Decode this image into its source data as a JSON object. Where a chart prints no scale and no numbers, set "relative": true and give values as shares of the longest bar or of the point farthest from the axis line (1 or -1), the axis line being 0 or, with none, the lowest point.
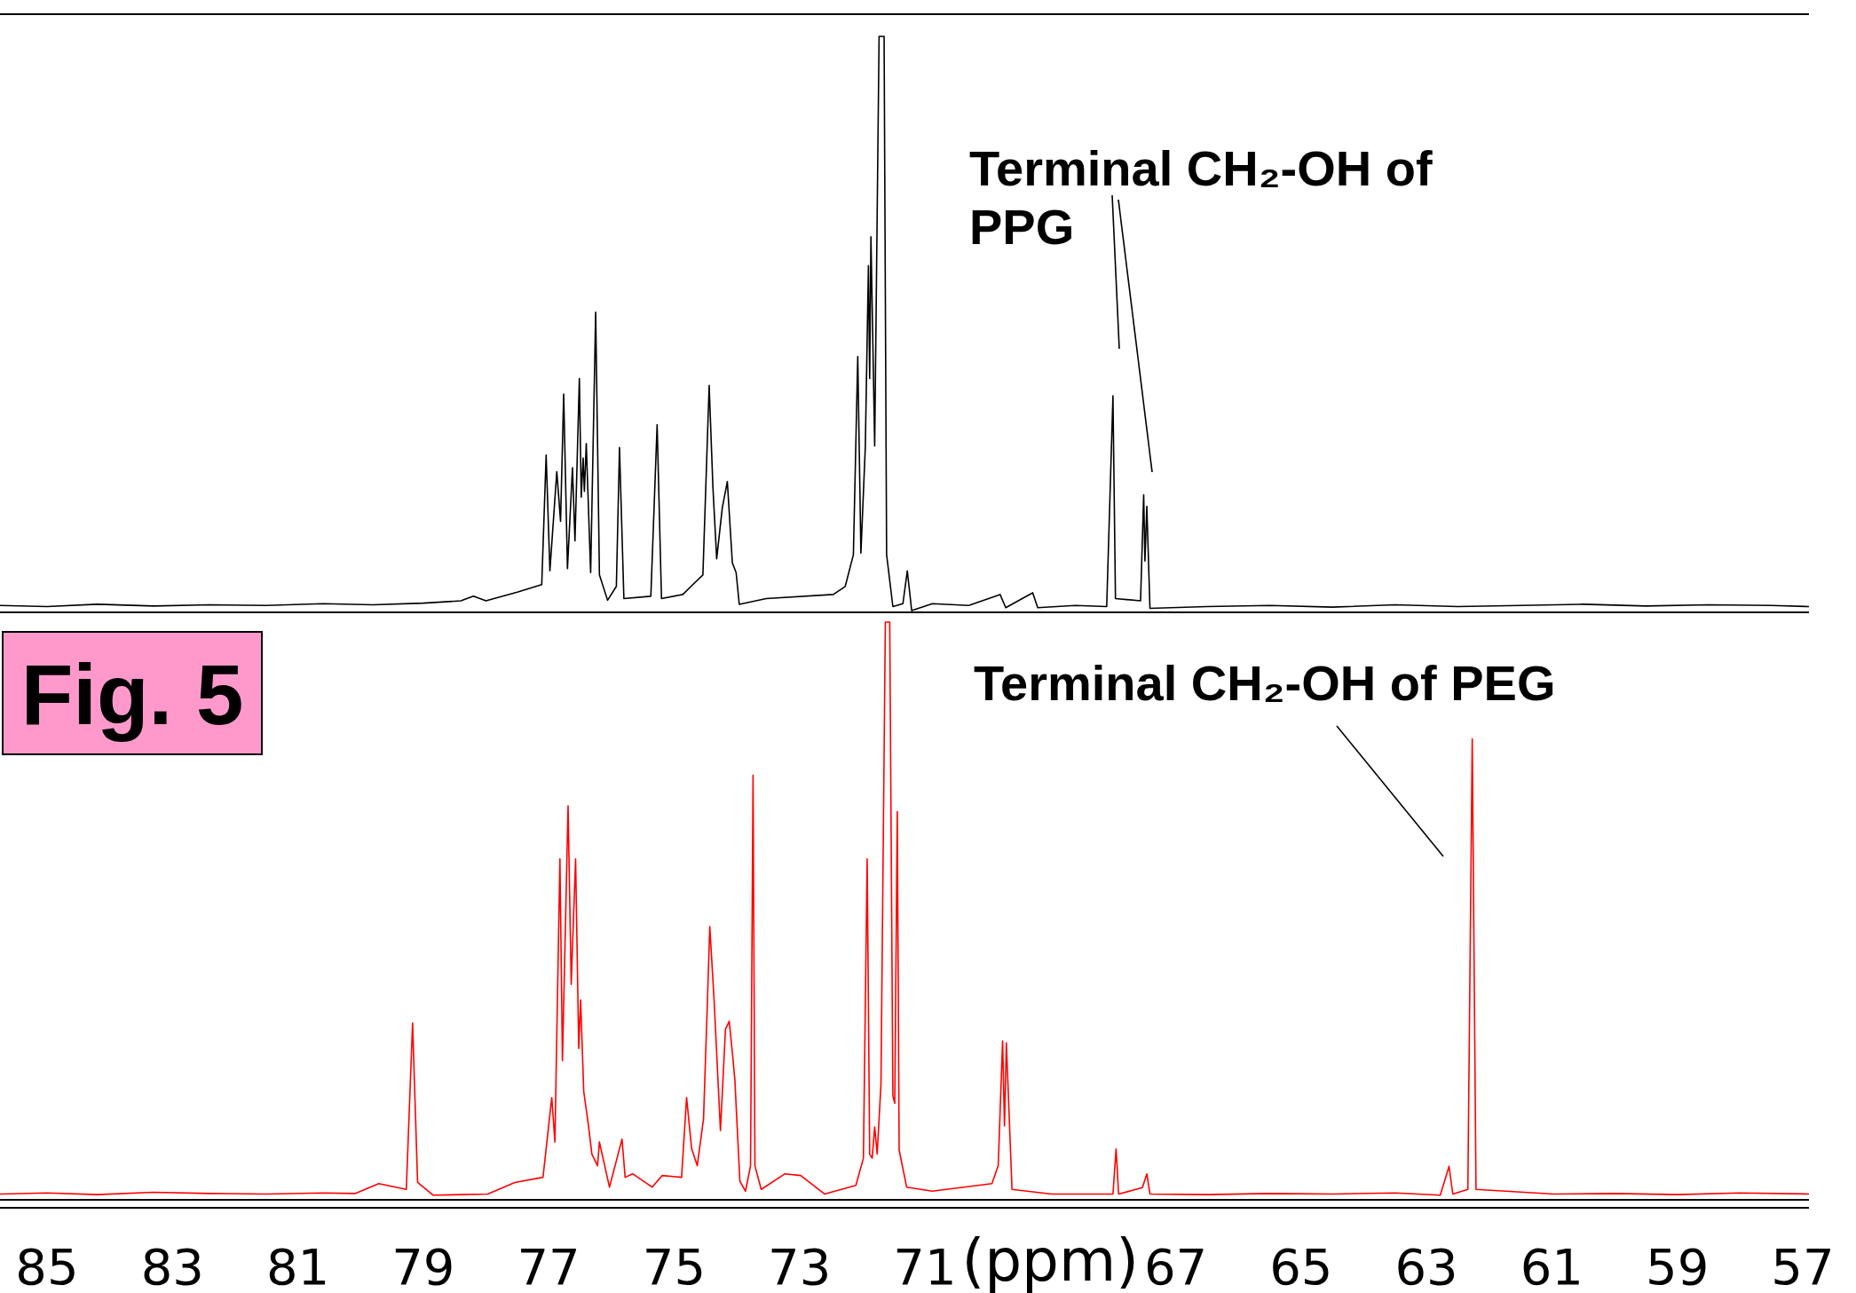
{
  "chart_data": [
    {
      "type": "line",
      "relative": true,
      "xlim": [
        85.75,
        56.9
      ],
      "xticks": [
        85,
        83,
        81,
        79,
        77,
        75,
        73,
        71,
        67,
        65,
        63,
        61,
        59,
        57
      ],
      "tick_labels": false,
      "annotations": [
        "Terminal CH₂-OH of PPG"
      ],
      "series": [
        {
          "color": "#000000",
          "x": [
            85.75,
            85,
            84.2,
            83.3,
            82.4,
            81.5,
            80.6,
            79.8,
            79,
            78.4,
            78.2,
            78.0,
            77.5,
            77.11,
            77.04,
            76.98,
            76.87,
            76.81,
            76.76,
            76.7,
            76.62,
            76.58,
            76.51,
            76.48,
            76.45,
            76.43,
            76.4,
            76.33,
            76.25,
            76.19,
            76.06,
            75.92,
            75.87,
            75.8,
            75.37,
            75.27,
            75.2,
            74.86,
            74.73,
            74.54,
            74.44,
            74.38,
            74.32,
            74.23,
            74.15,
            74.07,
            74.01,
            73.96,
            73.53,
            72.46,
            72.27,
            72.14,
            72.07,
            72.02,
            71.95,
            71.9,
            71.88,
            71.86,
            71.8,
            71.73,
            71.65,
            71.61,
            71.51,
            71.35,
            71.28,
            71.21,
            70.88,
            70.3,
            69.8,
            69.71,
            69.28,
            69.2,
            68.6,
            68.1,
            68.0,
            67.96,
            67.56,
            67.51,
            67.49,
            67.46,
            67.41,
            66.5,
            65.5,
            64.5,
            63.5,
            62.5,
            61.5,
            60.5,
            59.5,
            58.5,
            57.5,
            56.9
          ],
          "values": [
            0.012,
            0.01,
            0.014,
            0.011,
            0.013,
            0.012,
            0.015,
            0.013,
            0.016,
            0.02,
            0.028,
            0.02,
            0.035,
            0.048,
            0.273,
            0.072,
            0.244,
            0.158,
            0.379,
            0.076,
            0.251,
            0.124,
            0.406,
            0.2,
            0.268,
            0.21,
            0.293,
            0.069,
            0.521,
            0.065,
            0.021,
            0.045,
            0.286,
            0.024,
            0.028,
            0.326,
            0.024,
            0.031,
            0.045,
            0.065,
            0.394,
            0.217,
            0.093,
            0.182,
            0.227,
            0.086,
            0.069,
            0.014,
            0.024,
            0.031,
            0.045,
            0.1,
            0.444,
            0.103,
            0.286,
            0.602,
            0.406,
            0.652,
            0.289,
            1,
            1,
            0.1,
            0.01,
            0.015,
            0.072,
            0.003,
            0.015,
            0.012,
            0.031,
            0.008,
            0.034,
            0.008,
            0.012,
            0.01,
            0.376,
            0.024,
            0.02,
            0.204,
            0.089,
            0.184,
            0.007,
            0.01,
            0.012,
            0.009,
            0.013,
            0.01,
            0.012,
            0.014,
            0.011,
            0.013,
            0.012,
            0.01
          ]
        }
      ]
    },
    {
      "type": "line",
      "relative": true,
      "xlim": [
        85.75,
        56.9
      ],
      "xticks": [
        85,
        83,
        81,
        79,
        77,
        75,
        73,
        71,
        67,
        65,
        63,
        61,
        59,
        57
      ],
      "tick_labels": "x",
      "xlabel": "(ppm)",
      "annotations": [
        "Terminal CH₂-OH of PEG",
        "Fig. 5"
      ],
      "series": [
        {
          "color": "#ff0000",
          "x": [
            85.75,
            85,
            84.2,
            83.3,
            82.4,
            81.5,
            80.6,
            80.08,
            79.71,
            79.27,
            79.17,
            79.09,
            78.84,
            77.97,
            77.54,
            77.09,
            76.95,
            76.9,
            76.82,
            76.78,
            76.69,
            76.64,
            76.62,
            76.57,
            76.52,
            76.49,
            76.44,
            76.37,
            76.31,
            76.22,
            76.19,
            76.03,
            75.83,
            75.78,
            75.66,
            75.35,
            75.19,
            74.88,
            74.8,
            74.72,
            74.63,
            74.53,
            74.47,
            74.43,
            74.36,
            74.26,
            74.18,
            74.12,
            74.07,
            74.03,
            73.95,
            73.86,
            73.78,
            73.74,
            73.71,
            73.61,
            73.23,
            72.98,
            72.6,
            72.1,
            71.98,
            71.92,
            71.88,
            71.84,
            71.8,
            71.76,
            71.7,
            71.63,
            71.56,
            71.51,
            71.48,
            71.44,
            71.41,
            71.29,
            70.88,
            69.93,
            69.83,
            69.76,
            69.73,
            69.7,
            69.61,
            68.98,
            68.0,
            67.95,
            67.91,
            67.53,
            67.46,
            67.41,
            66.5,
            65.5,
            64.5,
            63.5,
            62.78,
            62.64,
            62.58,
            62.34,
            62.27,
            62.21,
            60.97,
            60,
            59,
            58,
            56.9
          ],
          "values": [
            0.01,
            0.012,
            0.009,
            0.013,
            0.011,
            0.01,
            0.012,
            0.011,
            0.028,
            0.018,
            0.306,
            0.03,
            0.008,
            0.01,
            0.03,
            0.039,
            0.177,
            0.1,
            0.59,
            0.241,
            0.682,
            0.373,
            0.437,
            0.59,
            0.262,
            0.346,
            0.187,
            0.133,
            0.079,
            0.059,
            0.1,
            0.022,
            0.105,
            0.039,
            0.045,
            0.022,
            0.042,
            0.039,
            0.177,
            0.089,
            0.059,
            0.14,
            0.336,
            0.473,
            0.343,
            0.12,
            0.295,
            0.309,
            0.255,
            0.208,
            0.032,
            0.015,
            0.059,
            0.735,
            0.059,
            0.018,
            0.045,
            0.042,
            0.01,
            0.025,
            0.072,
            0.59,
            0.079,
            0.072,
            0.126,
            0.079,
            0.2,
            1,
            1,
            0.18,
            0.167,
            0.672,
            0.086,
            0.022,
            0.015,
            0.028,
            0.059,
            0.275,
            0.128,
            0.272,
            0.018,
            0.01,
            0.01,
            0.088,
            0.01,
            0.021,
            0.045,
            0.01,
            0.009,
            0.011,
            0.01,
            0.012,
            0.008,
            0.058,
            0.01,
            0.018,
            0.798,
            0.018,
            0.01,
            0.011,
            0.009,
            0.012,
            0.01
          ]
        }
      ]
    }
  ]
}
